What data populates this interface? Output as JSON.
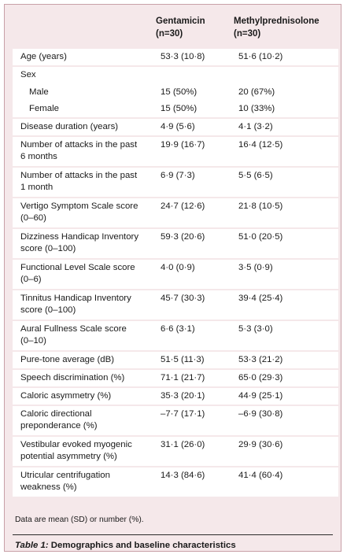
{
  "header": {
    "col1": "Gentamicin\n(n=30)",
    "col2": "Methylprednisolone\n(n=30)"
  },
  "rows": [
    {
      "label": "Age (years)",
      "v1": "53·3 (10·8)",
      "v2": "51·6 (10·2)"
    },
    {
      "label": "Sex",
      "v1": "",
      "v2": ""
    },
    {
      "label": "Male",
      "v1": "15 (50%)",
      "v2": "20 (67%)"
    },
    {
      "label": "Female",
      "v1": "15 (50%)",
      "v2": "10 (33%)"
    },
    {
      "label": "Disease duration (years)",
      "v1": "4·9 (5·6)",
      "v2": "4·1 (3·2)"
    },
    {
      "label": "Number of attacks in the past\n6 months",
      "v1": "19·9 (16·7)",
      "v2": "16·4 (12·5)"
    },
    {
      "label": "Number of attacks in the past\n1 month",
      "v1": "6·9 (7·3)",
      "v2": "5·5 (6·5)"
    },
    {
      "label": "Vertigo Symptom Scale score\n(0–60)",
      "v1": "24·7 (12·6)",
      "v2": "21·8 (10·5)"
    },
    {
      "label": "Dizziness Handicap Inventory\nscore (0–100)",
      "v1": "59·3 (20·6)",
      "v2": "51·0 (20·5)"
    },
    {
      "label": "Functional Level Scale score\n(0–6)",
      "v1": "4·0 (0·9)",
      "v2": "3·5 (0·9)"
    },
    {
      "label": "Tinnitus Handicap Inventory\nscore (0–100)",
      "v1": "45·7 (30·3)",
      "v2": "39·4 (25·4)"
    },
    {
      "label": "Aural Fullness Scale score\n(0–10)",
      "v1": "6·6 (3·1)",
      "v2": "5·3 (3·0)"
    },
    {
      "label": "Pure-tone average (dB)",
      "v1": "51·5 (11·3)",
      "v2": "53·3 (21·2)"
    },
    {
      "label": "Speech discrimination (%)",
      "v1": "71·1 (21·7)",
      "v2": "65·0 (29·3)"
    },
    {
      "label": "Caloric asymmetry (%)",
      "v1": "35·3 (20·1)",
      "v2": "44·9 (25·1)"
    },
    {
      "label": "Caloric directional\npreponderance (%)",
      "v1": "–7·7 (17·1)",
      "v2": "–6·9 (30·8)"
    },
    {
      "label": "Vestibular evoked myogenic\npotential asymmetry (%)",
      "v1": "31·1 (26·0)",
      "v2": "29·9 (30·6)"
    },
    {
      "label": "Utricular centrifugation\nweakness (%)",
      "v1": "14·3 (84·6)",
      "v2": "41·4 (60·4)"
    }
  ],
  "note": "Data are mean (SD) or number (%).",
  "caption": {
    "label": "Table 1:",
    "text": "Demographics and baseline characteristics"
  }
}
